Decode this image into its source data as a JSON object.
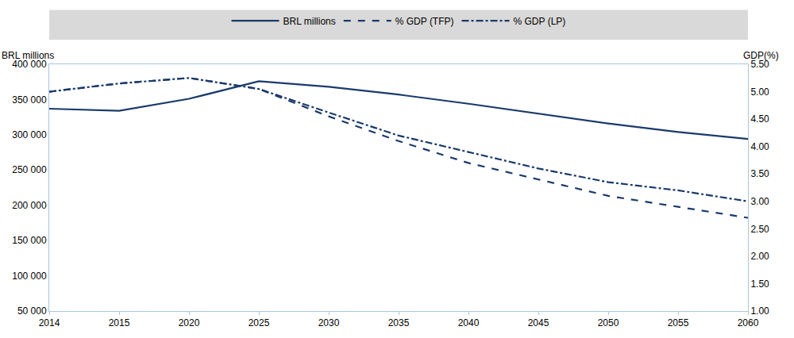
{
  "chart_data": {
    "type": "line",
    "y_label": "BRL millions",
    "y2_label": "GDP(%)",
    "categories": [
      "2014",
      "2015",
      "2020",
      "2025",
      "2030",
      "2035",
      "2040",
      "2045",
      "2050",
      "2055",
      "2060"
    ],
    "series": [
      {
        "name": "BRL millions",
        "color": "#1b3a6b",
        "line_style": "solid",
        "values": [
          337000,
          334000,
          351000,
          376000,
          368000,
          357000,
          344000,
          330000,
          316000,
          304000,
          294000
        ]
      },
      {
        "name": "% GDP (TFP)",
        "color": "#1b3a6b",
        "line_style": "dash",
        "axis": "y2",
        "values": [
          5.0,
          5.15,
          5.25,
          5.05,
          4.55,
          4.1,
          3.7,
          3.4,
          3.1,
          2.9,
          2.7
        ]
      },
      {
        "name": "% GDP (LP)",
        "color": "#1b3a6b",
        "line_style": "dashdot",
        "axis": "y2",
        "values": [
          5.0,
          5.15,
          5.25,
          5.05,
          4.62,
          4.2,
          3.9,
          3.6,
          3.35,
          3.2,
          3.0
        ]
      }
    ],
    "ylim": [
      50000,
      400000
    ],
    "yticks": [
      {
        "value": 50000,
        "label": "50 000"
      },
      {
        "value": 100000,
        "label": "100 000"
      },
      {
        "value": 150000,
        "label": "150 000"
      },
      {
        "value": 200000,
        "label": "200 000"
      },
      {
        "value": 250000,
        "label": "250 000"
      },
      {
        "value": 300000,
        "label": "300 000"
      },
      {
        "value": 350000,
        "label": "350 000"
      },
      {
        "value": 400000,
        "label": "400 000"
      }
    ],
    "y2lim": [
      1,
      5.5
    ],
    "y2ticks": [
      {
        "value": 1,
        "label": "1.00"
      },
      {
        "value": 1.5,
        "label": "1.50"
      },
      {
        "value": 2,
        "label": "2.00"
      },
      {
        "value": 2.5,
        "label": "2.50"
      },
      {
        "value": 3,
        "label": "3.00"
      },
      {
        "value": 3.5,
        "label": "3.50"
      },
      {
        "value": 4,
        "label": "4.00"
      },
      {
        "value": 4.5,
        "label": "4.50"
      },
      {
        "value": 5,
        "label": "5.00"
      },
      {
        "value": 5.5,
        "label": "5.50"
      }
    ],
    "grid": false,
    "legend": "top"
  }
}
